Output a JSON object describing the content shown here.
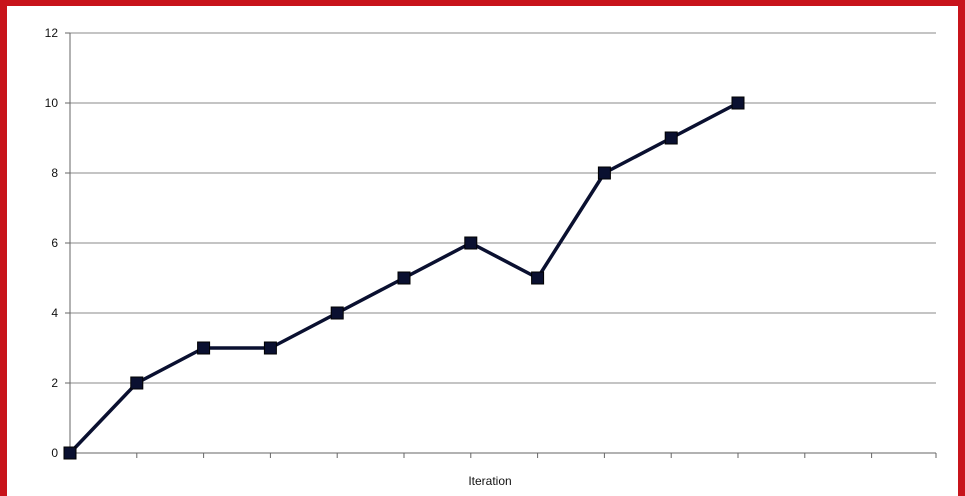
{
  "chart_data": {
    "type": "line",
    "title": "",
    "xlabel": "Iteration",
    "ylabel": "",
    "x": [
      0,
      1,
      2,
      3,
      4,
      5,
      6,
      7,
      8,
      9,
      10
    ],
    "ylim": [
      0,
      12
    ],
    "yticks": [
      0,
      2,
      4,
      6,
      8,
      10,
      12
    ],
    "grid": true,
    "legend": "none",
    "series": [
      {
        "values": [
          0,
          2,
          3,
          3,
          4,
          5,
          6,
          5,
          8,
          9,
          10
        ],
        "marker": "square",
        "color": "#0a1030"
      }
    ]
  },
  "colors": {
    "frame": "#c8141b",
    "line": "#0a1030",
    "grid": "#8a8a8a"
  }
}
